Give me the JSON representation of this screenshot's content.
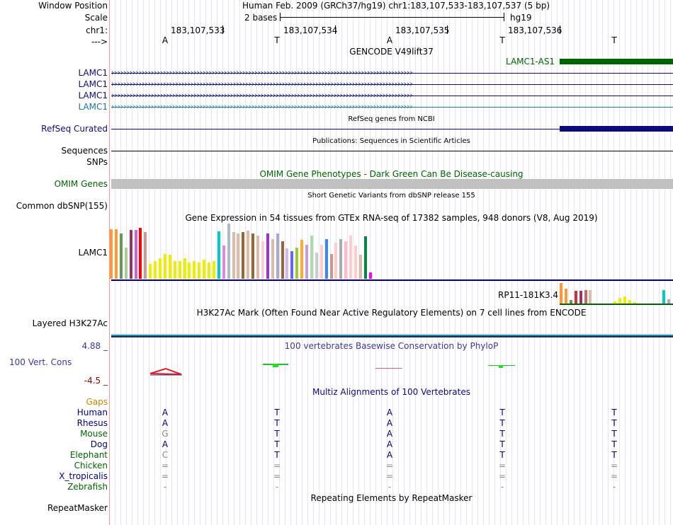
{
  "position": {
    "window_position_label": "Window Position",
    "window_position_value": "Human Feb. 2009 (GRCh37/hg19)   chr1:183,107,533-183,107,537 (5 bp)",
    "scale_label": "Scale",
    "scale_value": "2 bases",
    "scale_assembly": "hg19",
    "chrom_label": "chr1:",
    "strand_label": "--->",
    "coords": [
      "183,107,533",
      "183,107,534",
      "183,107,535",
      "183,107,536"
    ],
    "bases": [
      "A",
      "T",
      "A",
      "T",
      "T"
    ]
  },
  "tracks": {
    "gencode_title": "GENCODE V49lift37",
    "lamc1_as1": "LAMC1-AS1",
    "gencode_rows": [
      "LAMC1",
      "LAMC1",
      "LAMC1",
      "LAMC1"
    ],
    "refseq_title": "RefSeq genes from NCBI",
    "refseq_label": "RefSeq Curated",
    "pubs_title": "Publications: Sequences in Scientific Articles",
    "sequences_label": "Sequences",
    "snps_label": "SNPs",
    "omim_title": "OMIM Gene Phenotypes - Dark Green Can Be Disease-causing",
    "omim_label": "OMIM Genes",
    "dbsnp_title": "Short Genetic Variants from dbSNP release 155",
    "dbsnp_label": "Common dbSNP(155)",
    "gtex_title": "Gene Expression in 54 tissues from GTEx RNA-seq of 17382 samples, 948 donors (V8, Aug 2019)",
    "gtex_label": "LAMC1",
    "rp11_label": "RP11-181K3.4",
    "h3k27_title": "H3K27Ac Mark (Often Found Near Active Regulatory Elements) on 7 cell lines from ENCODE",
    "h3k27_label": "Layered H3K27Ac",
    "cons_max": "4.88 _",
    "cons_title": "100 vertebrates Basewise Conservation by PhyloP",
    "cons_label": "100 Vert. Cons",
    "cons_min": "-4.5 _",
    "multiz_title": "Multiz Alignments of 100 Vertebrates",
    "gaps_label": "Gaps",
    "species": [
      {
        "name": "Human",
        "bases": [
          "A",
          "T",
          "A",
          "T",
          "T"
        ],
        "color": "#000080"
      },
      {
        "name": "Rhesus",
        "bases": [
          "A",
          "T",
          "A",
          "T",
          "T"
        ],
        "color": "#000080"
      },
      {
        "name": "Mouse",
        "bases": [
          "G",
          "T",
          "A",
          "T",
          "T"
        ],
        "color": "#006400"
      },
      {
        "name": "Dog",
        "bases": [
          "A",
          "T",
          "A",
          "T",
          "T"
        ],
        "color": "#000080"
      },
      {
        "name": "Elephant",
        "bases": [
          "C",
          "T",
          "A",
          "T",
          "T"
        ],
        "color": "#006400"
      },
      {
        "name": "Chicken",
        "bases": [
          "=",
          "=",
          "=",
          "=",
          "="
        ],
        "color": "#006400"
      },
      {
        "name": "X_tropicalis",
        "bases": [
          "=",
          "=",
          "=",
          "=",
          "="
        ],
        "color": "#000080"
      },
      {
        "name": "Zebrafish",
        "bases": [
          "-",
          "-",
          "-",
          "-",
          "-"
        ],
        "color": "#006400"
      }
    ],
    "repeat_title": "Repeating Elements by RepeatMasker",
    "repeat_label": "RepeatMasker"
  },
  "colors": {
    "gencode_blue": "#0c0c78",
    "lamc1_teal": "#1a7a9a",
    "refseq_navy": "#0c0c78",
    "omim_green": "#006400",
    "omim_gray": "#c0c0c0",
    "gtex_line": "#000080",
    "cons_blue": "#3a3a9a",
    "cons_min_red": "#8b0000",
    "gaps_orange": "#d08000"
  },
  "gtex_values": [
    0.9,
    0.9,
    0.82,
    0.57,
    0.88,
    0.88,
    0.92,
    0.85,
    0.27,
    0.32,
    0.37,
    0.45,
    0.44,
    0.32,
    0.32,
    0.37,
    0.3,
    0.32,
    0.3,
    0.34,
    0.3,
    0.32,
    0.86,
    0.6,
    1.0,
    0.84,
    0.82,
    0.84,
    0.87,
    0.82,
    0.78,
    0.68,
    0.82,
    0.72,
    0.82,
    0.68,
    0.55,
    0.5,
    0.57,
    0.7,
    0.62,
    0.78,
    0.48,
    0.62,
    0.72,
    0.45,
    0.66,
    0.72,
    0.68,
    0.78,
    0.6,
    0.43,
    0.77,
    0.12
  ]
}
